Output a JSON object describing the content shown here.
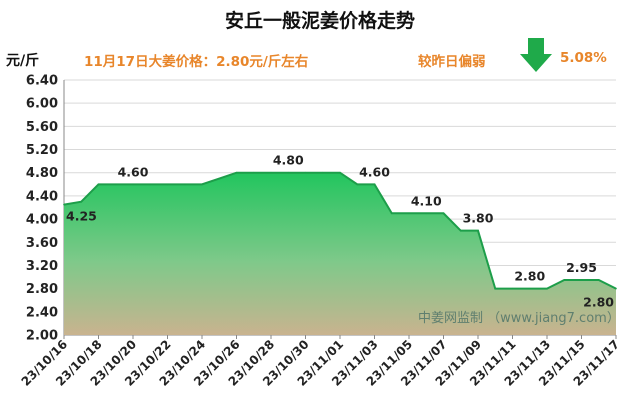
{
  "title": "安丘一般泥姜价格走势",
  "unit_label": "元/斤",
  "price_note": "11月17日大姜价格：2.80元/斤左右",
  "compare_label": "较昨日偏弱",
  "change_pct": "5.08%",
  "watermark": "中姜网监制 （www.jiang7.com）",
  "colors": {
    "accent": "#e8862b",
    "arrow": "#1faa4a",
    "line": "#1d9e4a",
    "fill_top": "#22c55e",
    "fill_bottom": "#c9b38f"
  },
  "chart_data": {
    "type": "area",
    "ylim": [
      2.0,
      6.4
    ],
    "yticks": [
      "2.00",
      "2.40",
      "2.80",
      "3.20",
      "3.60",
      "4.00",
      "4.40",
      "4.80",
      "5.20",
      "5.60",
      "6.00",
      "6.40"
    ],
    "xticks": [
      "23/10/16",
      "23/10/18",
      "23/10/20",
      "23/10/22",
      "23/10/24",
      "23/10/26",
      "23/10/28",
      "23/10/30",
      "23/11/01",
      "23/11/03",
      "23/11/05",
      "23/11/07",
      "23/11/09",
      "23/11/11",
      "23/11/13",
      "23/11/15",
      "23/11/17"
    ],
    "x": [
      "23/10/16",
      "23/10/17",
      "23/10/18",
      "23/10/19",
      "23/10/20",
      "23/10/21",
      "23/10/22",
      "23/10/23",
      "23/10/24",
      "23/10/25",
      "23/10/26",
      "23/10/27",
      "23/10/28",
      "23/10/29",
      "23/10/30",
      "23/10/31",
      "23/11/01",
      "23/11/02",
      "23/11/03",
      "23/11/04",
      "23/11/05",
      "23/11/06",
      "23/11/07",
      "23/11/08",
      "23/11/09",
      "23/11/10",
      "23/11/11",
      "23/11/12",
      "23/11/13",
      "23/11/14",
      "23/11/15",
      "23/11/16",
      "23/11/17"
    ],
    "values": [
      4.25,
      4.3,
      4.6,
      4.6,
      4.6,
      4.6,
      4.6,
      4.6,
      4.6,
      4.7,
      4.8,
      4.8,
      4.8,
      4.8,
      4.8,
      4.8,
      4.8,
      4.6,
      4.6,
      4.1,
      4.1,
      4.1,
      4.1,
      3.8,
      3.8,
      2.8,
      2.8,
      2.8,
      2.8,
      2.95,
      2.95,
      2.95,
      2.8
    ],
    "data_labels": [
      {
        "index": 0,
        "text": "4.25"
      },
      {
        "index": 4,
        "text": "4.60"
      },
      {
        "index": 13,
        "text": "4.80"
      },
      {
        "index": 18,
        "text": "4.60"
      },
      {
        "index": 21,
        "text": "4.10"
      },
      {
        "index": 24,
        "text": "3.80"
      },
      {
        "index": 27,
        "text": "2.80"
      },
      {
        "index": 30,
        "text": "2.95"
      },
      {
        "index": 32,
        "text": "2.80"
      }
    ]
  }
}
